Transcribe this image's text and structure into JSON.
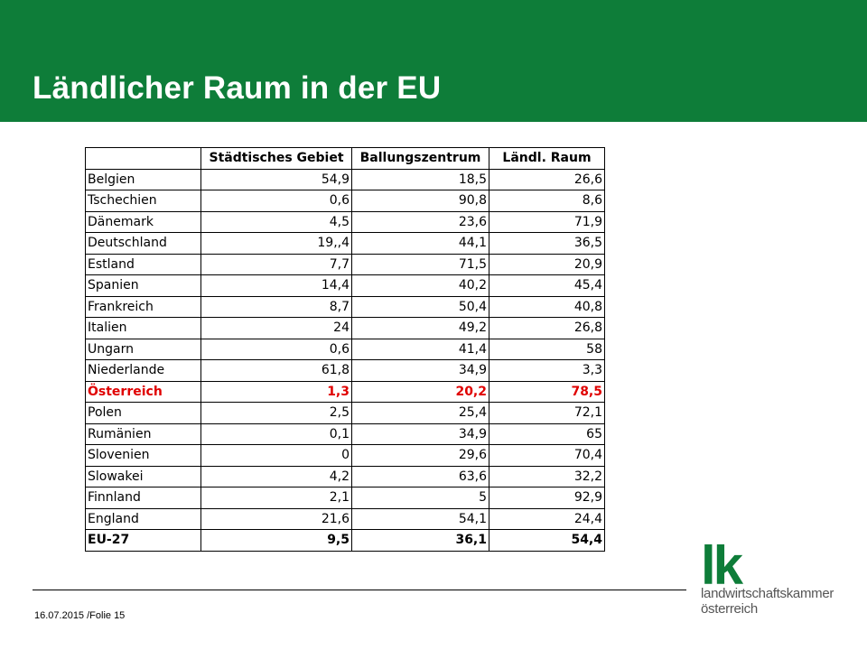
{
  "slide": {
    "title": "Ländlicher Raum in der EU",
    "footer": "16.07.2015 /Folie 15"
  },
  "logo": {
    "mark": "lk",
    "line1": "landwirtschaftskammer",
    "line2": "österreich"
  },
  "colors": {
    "header_green": "#0e7d39",
    "highlight_red": "#e00000"
  },
  "table": {
    "headers": [
      "",
      "Städtisches Gebiet",
      "Ballungszentrum",
      "Ländl. Raum"
    ],
    "rows": [
      [
        "Belgien",
        "54,9",
        "18,5",
        "26,6"
      ],
      [
        "Tschechien",
        "0,6",
        "90,8",
        "8,6"
      ],
      [
        "Dänemark",
        "4,5",
        "23,6",
        "71,9"
      ],
      [
        "Deutschland",
        "19,,4",
        "44,1",
        "36,5"
      ],
      [
        "Estland",
        "7,7",
        "71,5",
        "20,9"
      ],
      [
        "Spanien",
        "14,4",
        "40,2",
        "45,4"
      ],
      [
        "Frankreich",
        "8,7",
        "50,4",
        "40,8"
      ],
      [
        "Italien",
        "24",
        "49,2",
        "26,8"
      ],
      [
        "Ungarn",
        "0,6",
        "41,4",
        "58"
      ],
      [
        "Niederlande",
        "61,8",
        "34,9",
        "3,3"
      ],
      [
        "Österreich",
        "1,3",
        "20,2",
        "78,5"
      ],
      [
        "Polen",
        "2,5",
        "25,4",
        "72,1"
      ],
      [
        "Rumänien",
        "0,1",
        "34,9",
        "65"
      ],
      [
        "Slovenien",
        "0",
        "29,6",
        "70,4"
      ],
      [
        "Slowakei",
        "4,2",
        "63,6",
        "32,2"
      ],
      [
        "Finnland",
        "2,1",
        "5",
        "92,9"
      ],
      [
        "England",
        "21,6",
        "54,1",
        "24,4"
      ],
      [
        "EU-27",
        "9,5",
        "36,1",
        "54,4"
      ]
    ],
    "highlight_row": 10,
    "total_row": 17
  }
}
